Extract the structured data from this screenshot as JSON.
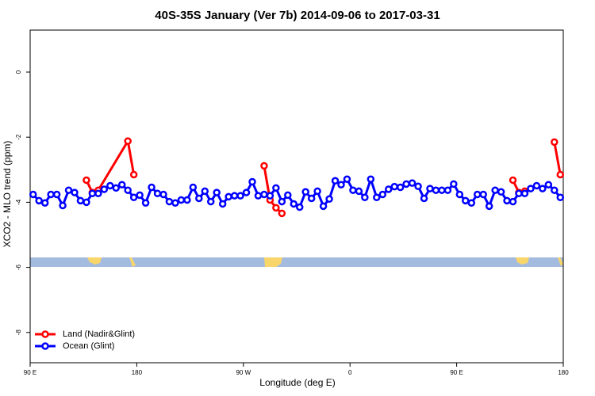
{
  "chart_data": {
    "type": "line",
    "title": "40S-35S January (Ver 7b)   2014-09-06 to 2017-03-31",
    "x_label": "Longitude (deg E)",
    "y_label": "XCO2 - MLO trend (ppm)",
    "xlim": [
      90,
      540
    ],
    "xticks": [
      {
        "value": 90,
        "label": "90 E"
      },
      {
        "value": 180,
        "label": "180"
      },
      {
        "value": 270,
        "label": "90 W"
      },
      {
        "value": 360,
        "label": "0"
      },
      {
        "value": 450,
        "label": "90 E"
      },
      {
        "value": 540,
        "label": "180"
      }
    ],
    "ylim": [
      -8.93,
      1.29
    ],
    "yticks": [
      -8,
      -6,
      -4,
      -2,
      0
    ],
    "legend": "bottomleft",
    "series": [
      {
        "name": "Land (Nadir&Glint)",
        "color": "#ff0000",
        "x": [
          137.5,
          142.5,
          147.5,
          172.5,
          177.5,
          null,
          287.5,
          292.5,
          297.5,
          302.5,
          null,
          497.5,
          502.5,
          507.5,
          null,
          532.5,
          537.5
        ],
        "values": [
          -3.32,
          -3.7,
          -3.63,
          -2.12,
          -3.15,
          null,
          -2.88,
          -3.93,
          -4.17,
          -4.34,
          null,
          -3.32,
          -3.7,
          -3.66,
          null,
          -2.15,
          -3.15
        ]
      },
      {
        "name": "Ocean (Glint)",
        "color": "#0000ff",
        "x": [
          92.5,
          97.5,
          102.5,
          107.5,
          112.5,
          117.5,
          122.5,
          127.5,
          132.5,
          137.5,
          142.5,
          147.5,
          152.5,
          157.5,
          162.5,
          167.5,
          172.5,
          177.5,
          182.5,
          187.5,
          192.5,
          197.5,
          202.5,
          207.5,
          212.5,
          217.5,
          222.5,
          227.5,
          232.5,
          237.5,
          242.5,
          247.5,
          252.5,
          257.5,
          262.5,
          267.5,
          272.5,
          277.5,
          282.5,
          287.5,
          292.5,
          297.5,
          302.5,
          307.5,
          312.5,
          317.5,
          322.5,
          327.5,
          332.5,
          337.5,
          342.5,
          347.5,
          352.5,
          357.5,
          362.5,
          367.5,
          372.5,
          377.5,
          382.5,
          387.5,
          392.5,
          397.5,
          402.5,
          407.5,
          412.5,
          417.5,
          422.5,
          427.5,
          432.5,
          437.5,
          442.5,
          447.5,
          452.5,
          457.5,
          462.5,
          467.5,
          472.5,
          477.5,
          482.5,
          487.5,
          492.5,
          497.5,
          502.5,
          507.5,
          512.5,
          517.5,
          522.5,
          527.5,
          532.5,
          537.5
        ],
        "values": [
          -3.76,
          -3.95,
          -4.02,
          -3.76,
          -3.76,
          -4.1,
          -3.63,
          -3.7,
          -3.95,
          -4.0,
          -3.73,
          -3.73,
          -3.6,
          -3.49,
          -3.56,
          -3.46,
          -3.63,
          -3.85,
          -3.78,
          -4.02,
          -3.54,
          -3.73,
          -3.76,
          -3.98,
          -4.02,
          -3.93,
          -3.93,
          -3.54,
          -3.88,
          -3.66,
          -3.98,
          -3.7,
          -4.05,
          -3.83,
          -3.8,
          -3.8,
          -3.7,
          -3.37,
          -3.8,
          -3.76,
          -3.8,
          -3.56,
          -3.98,
          -3.78,
          -4.05,
          -4.15,
          -3.68,
          -3.88,
          -3.66,
          -4.12,
          -3.9,
          -3.34,
          -3.46,
          -3.29,
          -3.63,
          -3.66,
          -3.85,
          -3.29,
          -3.85,
          -3.76,
          -3.6,
          -3.52,
          -3.54,
          -3.44,
          -3.41,
          -3.51,
          -3.88,
          -3.58,
          -3.63,
          -3.63,
          -3.63,
          -3.44,
          -3.76,
          -3.95,
          -4.02,
          -3.76,
          -3.76,
          -4.12,
          -3.63,
          -3.68,
          -3.95,
          -3.98,
          -3.73,
          -3.73,
          -3.58,
          -3.49,
          -3.58,
          -3.46,
          -3.63,
          -3.85
        ]
      }
    ]
  }
}
